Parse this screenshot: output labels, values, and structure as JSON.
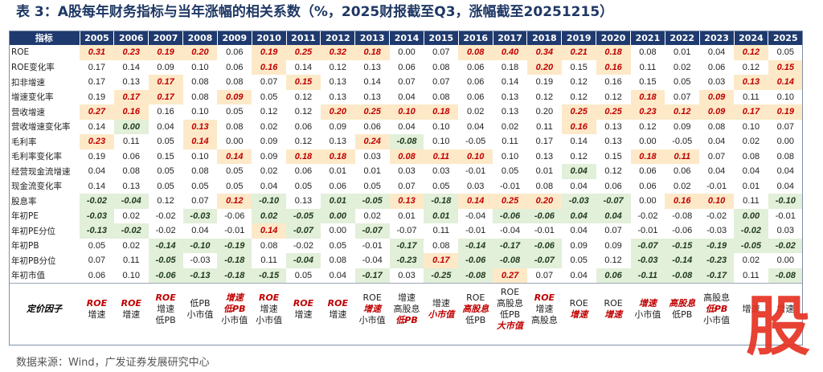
{
  "title": "表 3：A股每年财务指标与当年涨幅的相关系数（%，2025财报截至Q3，涨幅截至20251215）",
  "header": [
    "指标",
    "2005",
    "2006",
    "2007",
    "2008",
    "2009",
    "2010",
    "2011",
    "2012",
    "2013",
    "2014",
    "2015",
    "2016",
    "2017",
    "2018",
    "2019",
    "2020",
    "2021",
    "2022",
    "2023",
    "2024",
    "2025"
  ],
  "rows": [
    {
      "label": "ROE",
      "values": [
        "0.31",
        "0.23",
        "0.19",
        "0.20",
        "0.06",
        "0.19",
        "0.25",
        "0.32",
        "0.18",
        "0.00",
        "0.07",
        "0.08",
        "0.40",
        "0.34",
        "0.21",
        "0.18",
        "0.08",
        "0.01",
        "0.04",
        "0.12",
        "0.05"
      ],
      "hl": [
        "p",
        "p",
        "p",
        "p",
        "",
        "p",
        "p",
        "p",
        "p",
        "",
        "",
        "p",
        "p",
        "p",
        "p",
        "p",
        "",
        "",
        "",
        "p",
        ""
      ]
    },
    {
      "label": "ROE变化率",
      "values": [
        "0.17",
        "0.14",
        "0.09",
        "0.10",
        "0.06",
        "0.16",
        "0.14",
        "0.12",
        "0.13",
        "0.06",
        "0.08",
        "0.06",
        "0.18",
        "0.20",
        "0.15",
        "0.16",
        "0.11",
        "0.02",
        "0.06",
        "0.12",
        "0.15"
      ],
      "hl": [
        "",
        "",
        "",
        "",
        "",
        "p",
        "",
        "",
        "",
        "",
        "",
        "",
        "",
        "p",
        "",
        "p",
        "",
        "",
        "",
        "",
        "p"
      ]
    },
    {
      "label": "扣非增速",
      "values": [
        "0.17",
        "0.13",
        "0.17",
        "0.08",
        "0.08",
        "0.07",
        "0.15",
        "0.13",
        "0.14",
        "0.07",
        "0.07",
        "0.06",
        "0.14",
        "0.19",
        "0.12",
        "0.16",
        "0.15",
        "0.05",
        "0.03",
        "0.13",
        "0.14"
      ],
      "hl": [
        "",
        "",
        "p",
        "",
        "",
        "",
        "p",
        "",
        "",
        "",
        "",
        "",
        "",
        "",
        "",
        "",
        "",
        "",
        "",
        "p",
        "p"
      ]
    },
    {
      "label": "增速变化率",
      "values": [
        "0.19",
        "0.17",
        "0.17",
        "0.08",
        "0.09",
        "0.05",
        "0.12",
        "0.13",
        "0.13",
        "0.04",
        "0.08",
        "0.06",
        "0.13",
        "0.12",
        "0.12",
        "0.12",
        "0.18",
        "0.07",
        "0.09",
        "0.11",
        "0.10"
      ],
      "hl": [
        "",
        "p",
        "p",
        "",
        "p",
        "",
        "",
        "",
        "",
        "",
        "",
        "",
        "",
        "",
        "",
        "",
        "p",
        "",
        "p",
        "",
        ""
      ]
    },
    {
      "label": "营收增速",
      "values": [
        "0.27",
        "0.16",
        "0.16",
        "0.10",
        "0.05",
        "0.12",
        "0.12",
        "0.20",
        "0.25",
        "0.10",
        "0.18",
        "0.02",
        "0.13",
        "0.20",
        "0.25",
        "0.25",
        "0.23",
        "0.12",
        "0.09",
        "0.17",
        "0.19"
      ],
      "hl": [
        "p",
        "p",
        "",
        "",
        "",
        "",
        "",
        "p",
        "p",
        "p",
        "p",
        "",
        "",
        "",
        "p",
        "p",
        "p",
        "p",
        "p",
        "p",
        "p"
      ]
    },
    {
      "label": "营收增速变化率",
      "values": [
        "0.14",
        "0.00",
        "0.04",
        "0.13",
        "0.08",
        "0.02",
        "0.06",
        "0.09",
        "0.06",
        "0.04",
        "0.10",
        "0.04",
        "0.02",
        "0.11",
        "0.16",
        "0.13",
        "0.12",
        "0.09",
        "0.08",
        "0.10",
        "0.07"
      ],
      "hl": [
        "",
        "n",
        "",
        "p",
        "",
        "",
        "",
        "",
        "",
        "",
        "",
        "",
        "",
        "",
        "p",
        "",
        "",
        "",
        "",
        "",
        ""
      ]
    },
    {
      "label": "毛利率",
      "values": [
        "0.23",
        "0.11",
        "0.05",
        "0.14",
        "0.00",
        "0.09",
        "0.12",
        "0.13",
        "0.24",
        "-0.08",
        "0.10",
        "-0.05",
        "0.11",
        "0.17",
        "0.14",
        "0.13",
        "0.00",
        "-0.05",
        "0.04",
        "0.02",
        "0.00"
      ],
      "hl": [
        "p",
        "",
        "",
        "p",
        "",
        "",
        "",
        "",
        "p",
        "n",
        "",
        "",
        "",
        "",
        "",
        "",
        "",
        "",
        "",
        "",
        ""
      ]
    },
    {
      "label": "毛利率变化率",
      "values": [
        "0.19",
        "0.06",
        "0.15",
        "0.10",
        "0.14",
        "0.09",
        "0.18",
        "0.18",
        "0.03",
        "0.08",
        "0.11",
        "0.10",
        "0.10",
        "0.13",
        "0.12",
        "0.15",
        "0.18",
        "0.11",
        "0.07",
        "0.08",
        "0.08"
      ],
      "hl": [
        "",
        "",
        "",
        "",
        "p",
        "",
        "p",
        "p",
        "",
        "p",
        "p",
        "p",
        "",
        "",
        "",
        "",
        "p",
        "p",
        "",
        "",
        ""
      ]
    },
    {
      "label": "经营现金流增速",
      "values": [
        "0.04",
        "0.08",
        "0.05",
        "0.08",
        "0.05",
        "0.02",
        "0.06",
        "0.01",
        "0.01",
        "0.03",
        "0.03",
        "-0.01",
        "0.05",
        "0.01",
        "0.04",
        "0.12",
        "0.06",
        "0.06",
        "0.04",
        "0.04",
        "0.04"
      ],
      "hl": [
        "",
        "",
        "",
        "",
        "",
        "",
        "",
        "",
        "",
        "",
        "",
        "",
        "",
        "",
        "n",
        "",
        "",
        "",
        "",
        "",
        ""
      ]
    },
    {
      "label": "现金流变化率",
      "values": [
        "0.14",
        "0.13",
        "0.05",
        "0.05",
        "0.05",
        "0.04",
        "0.05",
        "0.06",
        "0.05",
        "0.07",
        "0.05",
        "0.03",
        "-0.01",
        "0.08",
        "0.04",
        "0.06",
        "0.06",
        "0.02",
        "-0.01",
        "0.01",
        "0.04"
      ],
      "hl": [
        "",
        "",
        "",
        "",
        "",
        "",
        "",
        "",
        "",
        "",
        "",
        "",
        "",
        "",
        "",
        "",
        "",
        "",
        "",
        "",
        ""
      ]
    },
    {
      "label": "股息率",
      "values": [
        "-0.02",
        "-0.04",
        "0.12",
        "0.07",
        "0.12",
        "-0.10",
        "0.13",
        "0.01",
        "-0.05",
        "0.13",
        "-0.18",
        "0.14",
        "0.25",
        "0.20",
        "-0.03",
        "-0.07",
        "0.00",
        "0.16",
        "0.10",
        "0.11",
        "-0.10"
      ],
      "hl": [
        "n",
        "n",
        "",
        "",
        "p",
        "n",
        "",
        "n",
        "n",
        "p",
        "n",
        "p",
        "p",
        "p",
        "n",
        "n",
        "",
        "p",
        "p",
        "",
        "n"
      ]
    },
    {
      "label": "年初PE",
      "values": [
        "-0.03",
        "0.02",
        "-0.02",
        "-0.03",
        "-0.06",
        "0.02",
        "-0.05",
        "0.00",
        "0.02",
        "0.01",
        "0.01",
        "-0.04",
        "-0.06",
        "-0.06",
        "0.04",
        "0.04",
        "-0.02",
        "-0.08",
        "-0.02",
        "0.00",
        "-0.01"
      ],
      "hl": [
        "n",
        "",
        "",
        "n",
        "",
        "n",
        "n",
        "n",
        "",
        "",
        "n",
        "",
        "n",
        "n",
        "n",
        "n",
        "",
        "",
        "",
        "n",
        ""
      ]
    },
    {
      "label": "年初PE分位",
      "values": [
        "-0.13",
        "-0.02",
        "-0.02",
        "0.04",
        "-0.01",
        "0.14",
        "-0.07",
        "0.00",
        "-0.07",
        "-0.07",
        "0.11",
        "-0.01",
        "-0.04",
        "-0.01",
        "0.04",
        "0.07",
        "-0.01",
        "-0.06",
        "-0.03",
        "-0.02",
        "0.03"
      ],
      "hl": [
        "n",
        "n",
        "",
        "",
        "",
        "p",
        "n",
        "",
        "n",
        "",
        "",
        "",
        "",
        "",
        "",
        "",
        "",
        "",
        "",
        "n",
        ""
      ]
    },
    {
      "label": "年初PB",
      "values": [
        "0.05",
        "0.02",
        "-0.14",
        "-0.10",
        "-0.19",
        "0.08",
        "-0.02",
        "0.05",
        "-0.01",
        "-0.17",
        "0.08",
        "-0.14",
        "-0.17",
        "-0.06",
        "0.09",
        "0.09",
        "-0.07",
        "-0.15",
        "-0.19",
        "-0.05",
        "-0.02"
      ],
      "hl": [
        "",
        "",
        "n",
        "n",
        "n",
        "",
        "",
        "",
        "",
        "n",
        "",
        "n",
        "n",
        "n",
        "",
        "",
        "n",
        "n",
        "n",
        "n",
        "n"
      ]
    },
    {
      "label": "年初PB分位",
      "values": [
        "0.07",
        "0.11",
        "-0.05",
        "-0.03",
        "-0.18",
        "0.11",
        "-0.04",
        "0.08",
        "-0.04",
        "-0.23",
        "0.17",
        "-0.06",
        "-0.08",
        "-0.07",
        "0.05",
        "0.12",
        "-0.03",
        "-0.14",
        "-0.23",
        "0.02",
        "0.00"
      ],
      "hl": [
        "",
        "",
        "n",
        "",
        "n",
        "",
        "n",
        "",
        "",
        "n",
        "p",
        "n",
        "n",
        "n",
        "",
        "",
        "n",
        "n",
        "n",
        "",
        ""
      ]
    },
    {
      "label": "年初市值",
      "values": [
        "0.06",
        "0.10",
        "-0.06",
        "-0.13",
        "-0.18",
        "-0.15",
        "0.05",
        "0.04",
        "-0.17",
        "0.03",
        "-0.25",
        "-0.08",
        "0.27",
        "0.07",
        "0.04",
        "0.06",
        "-0.11",
        "-0.08",
        "-0.17",
        "0.11",
        "-0.08"
      ],
      "hl": [
        "",
        "",
        "n",
        "n",
        "n",
        "n",
        "",
        "",
        "n",
        "",
        "n",
        "n",
        "p",
        "",
        "",
        "n",
        "n",
        "n",
        "n",
        "",
        "n"
      ]
    }
  ],
  "factor": {
    "label": "定价因子",
    "cells": [
      [
        [
          "r",
          "ROE"
        ],
        [
          "b",
          "增速"
        ]
      ],
      [
        [
          "r",
          "ROE"
        ],
        [
          "b",
          "增速"
        ]
      ],
      [
        [
          "r",
          "ROE"
        ],
        [
          "b",
          "增速"
        ],
        [
          "b",
          "低PB"
        ]
      ],
      [
        [
          "b",
          "低PB"
        ],
        [
          "b",
          "小市值"
        ]
      ],
      [
        [
          "r",
          "增速"
        ],
        [
          "r",
          "低PB"
        ],
        [
          "b",
          "小市值"
        ]
      ],
      [
        [
          "r",
          "ROE"
        ],
        [
          "b",
          "增速"
        ],
        [
          "b",
          "小市值"
        ]
      ],
      [
        [
          "r",
          "ROE"
        ],
        [
          "b",
          "增速"
        ]
      ],
      [
        [
          "r",
          "ROE"
        ],
        [
          "b",
          "增速"
        ]
      ],
      [
        [
          "b",
          "ROE"
        ],
        [
          "r",
          "增速"
        ],
        [
          "b",
          "小市值"
        ]
      ],
      [
        [
          "b",
          "增速"
        ],
        [
          "b",
          "高股息"
        ],
        [
          "r",
          "低PB"
        ]
      ],
      [
        [
          "b",
          "增速"
        ],
        [
          "r",
          "小市值"
        ]
      ],
      [
        [
          "b",
          "ROE"
        ],
        [
          "r",
          "高股息"
        ],
        [
          "b",
          "低PB"
        ]
      ],
      [
        [
          "b",
          "ROE"
        ],
        [
          "b",
          "高股息"
        ],
        [
          "b",
          "低PB"
        ],
        [
          "r",
          "大市值"
        ]
      ],
      [
        [
          "r",
          "ROE"
        ],
        [
          "b",
          "增速"
        ],
        [
          "b",
          "高股息"
        ]
      ],
      [
        [
          "b",
          "ROE"
        ],
        [
          "r",
          "增速"
        ]
      ],
      [
        [
          "b",
          "ROE"
        ],
        [
          "r",
          "增速"
        ]
      ],
      [
        [
          "r",
          "增速"
        ],
        [
          "b",
          "小市值"
        ]
      ],
      [
        [
          "r",
          "高股息"
        ],
        [
          "b",
          "低PB"
        ]
      ],
      [
        [
          "b",
          "高股息"
        ],
        [
          "r",
          "低PB"
        ],
        [
          "b",
          "小市值"
        ]
      ],
      [
        [
          "b",
          "增速"
        ]
      ],
      [
        [
          "b",
          "增速"
        ]
      ]
    ]
  },
  "source": "数据来源：Wind，广发证券发展研究中心",
  "watermark": "股",
  "colors": {
    "header_bg": "#1f3a6e",
    "positive_bg": "#fde9c8",
    "positive_text": "#c00000",
    "negative_bg": "#e2efd9",
    "accent": "#e63323"
  }
}
